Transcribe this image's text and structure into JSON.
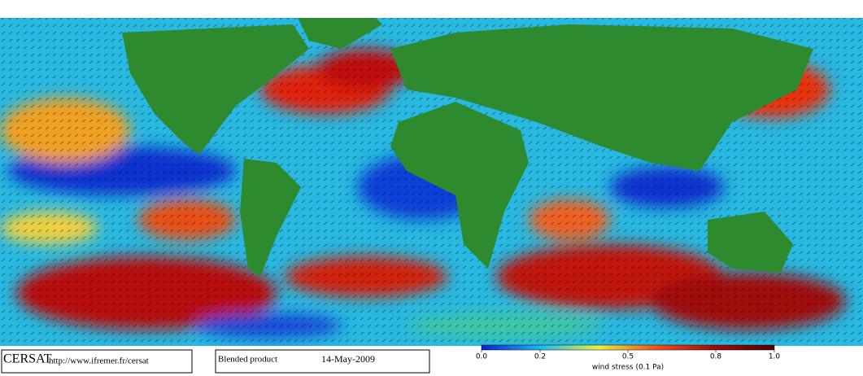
{
  "map": {
    "colorbar": {
      "range": [
        0,
        1
      ],
      "ticks": [
        {
          "value": 0,
          "label": "0.0"
        },
        0.2,
        0.5,
        0.8,
        {
          "value": 1,
          "label": "1.0"
        }
      ],
      "label": "wind stress (0.1 Pa)"
    }
  },
  "footer": {
    "logo": "CERSAT",
    "url": "http://www.ifremer.fr/cersat",
    "product": "Blended product",
    "date": "14-May-2009"
  }
}
